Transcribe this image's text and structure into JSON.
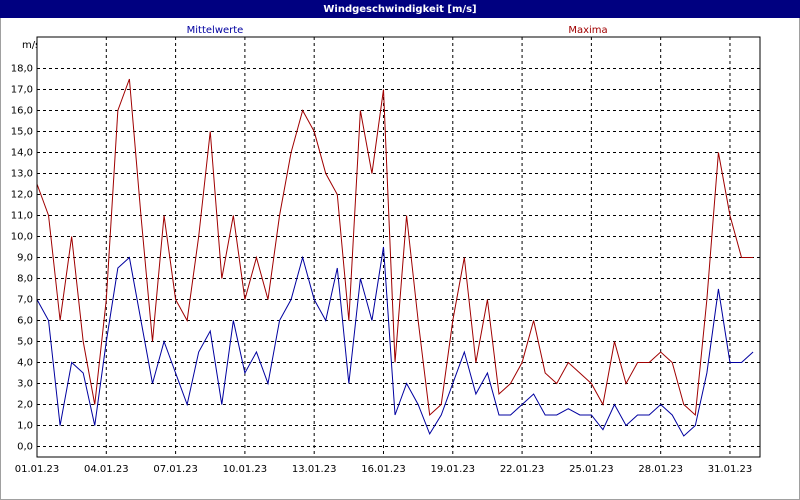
{
  "chart_data": {
    "type": "line",
    "title": "Windgeschwindigkeit [m/s]",
    "ylabel": "m/s",
    "x": [
      0,
      0.5,
      1,
      1.5,
      2,
      2.5,
      3,
      3.5,
      4,
      4.5,
      5,
      5.5,
      6,
      6.5,
      7,
      7.5,
      8,
      8.5,
      9,
      9.5,
      10,
      10.5,
      11,
      11.5,
      12,
      12.5,
      13,
      13.5,
      14,
      14.5,
      15,
      15.5,
      16,
      16.5,
      17,
      17.5,
      18,
      18.5,
      19,
      19.5,
      20,
      20.5,
      21,
      21.5,
      22,
      22.5,
      23,
      23.5,
      24,
      24.5,
      25,
      25.5,
      26,
      26.5,
      27,
      27.5,
      28,
      28.5,
      29,
      29.5,
      30,
      30.5,
      31
    ],
    "series": [
      {
        "name": "Mittelwerte",
        "color": "#0000a0",
        "values": [
          7,
          6,
          1,
          4,
          3.5,
          1,
          5,
          8.5,
          9,
          6,
          3,
          5,
          3.5,
          2,
          4.5,
          5.5,
          2,
          6,
          3.5,
          4.5,
          3,
          6,
          7,
          9,
          7,
          6,
          8.5,
          3,
          8,
          6,
          9.5,
          1.5,
          3,
          2,
          0.6,
          1.5,
          3,
          4.5,
          2.5,
          3.5,
          1.5,
          1.5,
          2,
          2.5,
          1.5,
          1.5,
          1.8,
          1.5,
          1.5,
          0.8,
          2,
          1,
          1.5,
          1.5,
          2,
          1.5,
          0.5,
          1,
          3.5,
          7.5,
          4,
          4,
          4.5
        ]
      },
      {
        "name": "Maxima",
        "color": "#a00000",
        "values": [
          12.5,
          11,
          6,
          10,
          5,
          2,
          7,
          16,
          17.5,
          11,
          5,
          11,
          7,
          6,
          10,
          15,
          8,
          11,
          7,
          9,
          7,
          11,
          14,
          16,
          15,
          13,
          12,
          6,
          16,
          13,
          17,
          4,
          11,
          6,
          1.5,
          2,
          6,
          9,
          4,
          7,
          2.5,
          3,
          4,
          6,
          3.5,
          3,
          4,
          3.5,
          3,
          2,
          5,
          3,
          4,
          4,
          4.5,
          4,
          2,
          1.5,
          7,
          14,
          11,
          9,
          9
        ]
      }
    ],
    "xlim": [
      0,
      31.3
    ],
    "xticks": [
      {
        "value": 0,
        "label": "01.01.23"
      },
      {
        "value": 3,
        "label": "04.01.23"
      },
      {
        "value": 6,
        "label": "07.01.23"
      },
      {
        "value": 9,
        "label": "10.01.23"
      },
      {
        "value": 12,
        "label": "13.01.23"
      },
      {
        "value": 15,
        "label": "16.01.23"
      },
      {
        "value": 18,
        "label": "19.01.23"
      },
      {
        "value": 21,
        "label": "22.01.23"
      },
      {
        "value": 24,
        "label": "25.01.23"
      },
      {
        "value": 27,
        "label": "28.01.23"
      },
      {
        "value": 30,
        "label": "31.01.23"
      }
    ],
    "ylim": [
      -0.5,
      19.5
    ],
    "yticks": [
      {
        "value": 0,
        "label": "0,0"
      },
      {
        "value": 1,
        "label": "1,0"
      },
      {
        "value": 2,
        "label": "2,0"
      },
      {
        "value": 3,
        "label": "3,0"
      },
      {
        "value": 4,
        "label": "4,0"
      },
      {
        "value": 5,
        "label": "5,0"
      },
      {
        "value": 6,
        "label": "6,0"
      },
      {
        "value": 7,
        "label": "7,0"
      },
      {
        "value": 8,
        "label": "8,0"
      },
      {
        "value": 9,
        "label": "9,0"
      },
      {
        "value": 10,
        "label": "10,0"
      },
      {
        "value": 11,
        "label": "11,0"
      },
      {
        "value": 12,
        "label": "12,0"
      },
      {
        "value": 13,
        "label": "13,0"
      },
      {
        "value": 14,
        "label": "14,0"
      },
      {
        "value": 15,
        "label": "15,0"
      },
      {
        "value": 16,
        "label": "16,0"
      },
      {
        "value": 17,
        "label": "17,0"
      },
      {
        "value": 18,
        "label": "18,0"
      }
    ],
    "grid": true
  }
}
